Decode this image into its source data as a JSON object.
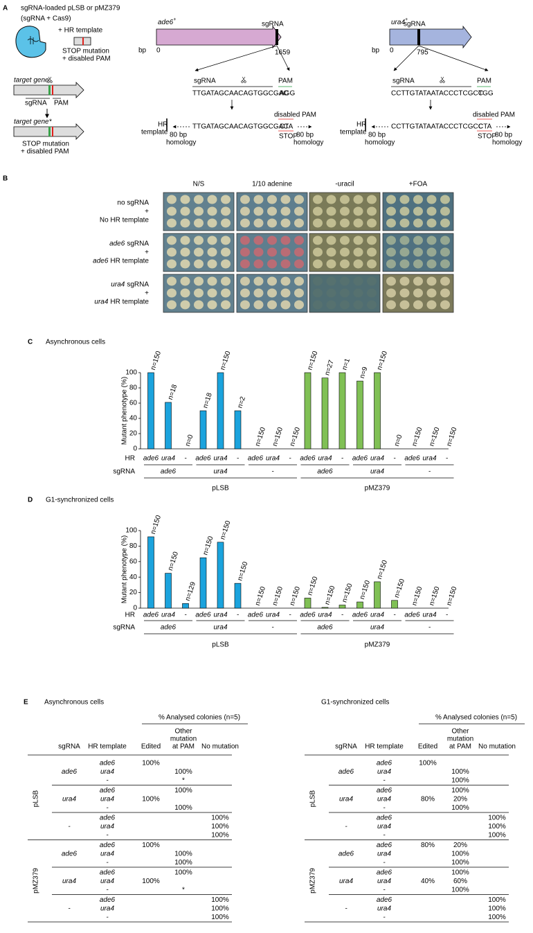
{
  "panel_a": {
    "label": "A",
    "vector": [
      "sgRNA-loaded pLSB or pMZ379",
      "(sgRNA + Cas9)"
    ],
    "hr_template": "+ HR template",
    "template_note": [
      "STOP mutation",
      "+ disabled PAM"
    ],
    "target_gene": "target gene",
    "sgrna": "sgRNA",
    "pam": "PAM",
    "target_gene_edited": "target gene*",
    "edited_note": [
      "STOP mutation",
      "+ disabled PAM"
    ],
    "genes": [
      {
        "name": "ade6",
        "sup": "+",
        "sgrna": "sgRNA",
        "bp": "bp",
        "start": 0,
        "end": 1659,
        "seq_label": "sgRNA",
        "pam_label": "PAM",
        "sequence": "TTGATAGCAACAGTGGCGAC",
        "pam": "AGG",
        "hr": "HR",
        "template": "template",
        "disabled": "disabled PAM",
        "new_pam": "CTA",
        "stop": "STOP",
        "homology_left": [
          "80 bp",
          "homology"
        ],
        "homology_right": [
          "80 bp",
          "homology"
        ]
      },
      {
        "name": "ura4",
        "sup": "+",
        "sgrna": "sgRNA",
        "bp": "bp",
        "start": 0,
        "end": 795,
        "seq_label": "sgRNA",
        "pam_label": "PAM",
        "sequence": "CCTTGTATAATACCCTCGCC",
        "pam": "TGG",
        "hr": "HR",
        "template": "template",
        "disabled": "disabled PAM",
        "new_pam": "CTA",
        "stop": "STOP",
        "homology_left": [
          "80 bp",
          "homology"
        ],
        "homology_right": [
          "80 bp",
          "homology"
        ]
      }
    ]
  },
  "panel_b": {
    "label": "B",
    "columns": [
      "N/S",
      "1/10 adenine",
      "-uracil",
      "+FOA"
    ],
    "rows": [
      {
        "top": "no sgRNA",
        "plus": "+",
        "bottom": "No HR template"
      },
      {
        "top_gene": "ade6",
        "top": "sgRNA",
        "plus": "+",
        "bottom_gene": "ade6",
        "bottom": "HR template"
      },
      {
        "top_gene": "ura4",
        "top": "sgRNA",
        "plus": "+",
        "bottom_gene": "ura4",
        "bottom": "HR template"
      }
    ]
  },
  "chart_data": [
    {
      "type": "bar",
      "panel": "C",
      "title": "Asynchronous cells",
      "ylabel": "Mutant phenotype (%)",
      "ylim": [
        0,
        100
      ],
      "yticks": [
        0,
        20,
        40,
        60,
        80,
        100
      ],
      "row_labels": [
        "HR",
        "sgRNA"
      ],
      "categories": [
        "ade6",
        "ura4",
        "-",
        "ade6",
        "ura4",
        "-",
        "ade6",
        "ura4",
        "-",
        "ade6",
        "ura4",
        "-",
        "ade6",
        "ura4",
        "-",
        "ade6",
        "ura4",
        "-"
      ],
      "sgrna": [
        "ade6",
        "ura4",
        "-",
        "ade6",
        "ura4",
        "-"
      ],
      "plasmids": [
        {
          "name": "pLSB",
          "color": "#1ba3dd"
        },
        {
          "name": "pMZ379",
          "color": "#80c055"
        }
      ],
      "values": [
        100,
        61,
        0,
        50,
        100,
        50,
        0,
        0,
        0,
        100,
        93,
        100,
        89,
        100,
        0,
        0,
        0,
        0
      ],
      "annotations": [
        "n=150",
        "n=18",
        "n=0",
        "n=18",
        "n=150",
        "n=2",
        "n=150",
        "n=150",
        "n=150",
        "n=150",
        "n=27",
        "n=1",
        "n=9",
        "n=150",
        "n=0",
        "n=150",
        "n=150",
        "n=150"
      ]
    },
    {
      "type": "bar",
      "panel": "D",
      "title": "G1-synchronized cells",
      "ylabel": "Mutant phenotype (%)",
      "ylim": [
        0,
        100
      ],
      "yticks": [
        0,
        20,
        40,
        60,
        80,
        100
      ],
      "row_labels": [
        "HR",
        "sgRNA"
      ],
      "categories": [
        "ade6",
        "ura4",
        "-",
        "ade6",
        "ura4",
        "-",
        "ade6",
        "ura4",
        "-",
        "ade6",
        "ura4",
        "-",
        "ade6",
        "ura4",
        "-",
        "ade6",
        "ura4",
        "-"
      ],
      "sgrna": [
        "ade6",
        "ura4",
        "-",
        "ade6",
        "ura4",
        "-"
      ],
      "plasmids": [
        {
          "name": "pLSB",
          "color": "#1ba3dd"
        },
        {
          "name": "pMZ379",
          "color": "#80c055"
        }
      ],
      "values": [
        92,
        45,
        6,
        65,
        85,
        32,
        0,
        0,
        0,
        13,
        1,
        4,
        8,
        34,
        10,
        0,
        0,
        0
      ],
      "annotations": [
        "n=150",
        "n=150",
        "n=129",
        "n=150",
        "n=150",
        "n=150",
        "n=150",
        "n=150",
        "n=150",
        "n=150",
        "n=150",
        "n=150",
        "n=150",
        "n=150",
        "n=150",
        "n=150",
        "n=150",
        "n=150"
      ]
    }
  ],
  "panel_e": {
    "label": "E",
    "tables": [
      {
        "title": "Asynchronous cells",
        "group_header": "% Analysed colonies (n=5)",
        "columns": {
          "sgrna": "sgRNA",
          "hr": "HR template",
          "edited": "Edited",
          "other": [
            "Other",
            "mutation",
            "at PAM"
          ],
          "none": "No mutation"
        },
        "plasmids": [
          {
            "name": "pLSB",
            "groups": [
              {
                "sgrna": "ade6",
                "rows": [
                  {
                    "hr": "ade6",
                    "edited": "100%"
                  },
                  {
                    "hr": "ura4",
                    "other": "100%"
                  },
                  {
                    "hr": "-",
                    "other": "*"
                  }
                ]
              },
              {
                "sgrna": "ura4",
                "rows": [
                  {
                    "hr": "ade6",
                    "other": "100%"
                  },
                  {
                    "hr": "ura4",
                    "edited": "100%"
                  },
                  {
                    "hr": "-",
                    "other": "100%"
                  }
                ]
              },
              {
                "sgrna": "-",
                "rows": [
                  {
                    "hr": "ade6",
                    "none": "100%"
                  },
                  {
                    "hr": "ura4",
                    "none": "100%"
                  },
                  {
                    "hr": "-",
                    "none": "100%"
                  }
                ]
              }
            ]
          },
          {
            "name": "pMZ379",
            "groups": [
              {
                "sgrna": "ade6",
                "rows": [
                  {
                    "hr": "ade6",
                    "edited": "100%"
                  },
                  {
                    "hr": "ura4",
                    "other": "100%"
                  },
                  {
                    "hr": "-",
                    "other": "100%"
                  }
                ]
              },
              {
                "sgrna": "ura4",
                "rows": [
                  {
                    "hr": "ade6",
                    "other": "100%"
                  },
                  {
                    "hr": "ura4",
                    "edited": "100%"
                  },
                  {
                    "hr": "-",
                    "other": "*"
                  }
                ]
              },
              {
                "sgrna": "-",
                "rows": [
                  {
                    "hr": "ade6",
                    "none": "100%"
                  },
                  {
                    "hr": "ura4",
                    "none": "100%"
                  },
                  {
                    "hr": "-",
                    "none": "100%"
                  }
                ]
              }
            ]
          }
        ]
      },
      {
        "title": "G1-synchronized cells",
        "group_header": "% Analysed colonies (n=5)",
        "columns": {
          "sgrna": "sgRNA",
          "hr": "HR template",
          "edited": "Edited",
          "other": [
            "Other",
            "mutation",
            "at PAM"
          ],
          "none": "No mutation"
        },
        "plasmids": [
          {
            "name": "pLSB",
            "groups": [
              {
                "sgrna": "ade6",
                "rows": [
                  {
                    "hr": "ade6",
                    "edited": "100%"
                  },
                  {
                    "hr": "ura4",
                    "other": "100%"
                  },
                  {
                    "hr": "-",
                    "other": "100%"
                  }
                ]
              },
              {
                "sgrna": "ura4",
                "rows": [
                  {
                    "hr": "ade6",
                    "other": "100%"
                  },
                  {
                    "hr": "ura4",
                    "edited": "80%",
                    "other": "20%"
                  },
                  {
                    "hr": "-",
                    "other": "100%"
                  }
                ]
              },
              {
                "sgrna": "-",
                "rows": [
                  {
                    "hr": "ade6",
                    "none": "100%"
                  },
                  {
                    "hr": "ura4",
                    "none": "100%"
                  },
                  {
                    "hr": "-",
                    "none": "100%"
                  }
                ]
              }
            ]
          },
          {
            "name": "pMZ379",
            "groups": [
              {
                "sgrna": "ade6",
                "rows": [
                  {
                    "hr": "ade6",
                    "edited": "80%",
                    "other": "20%"
                  },
                  {
                    "hr": "ura4",
                    "other": "100%"
                  },
                  {
                    "hr": "-",
                    "other": "100%"
                  }
                ]
              },
              {
                "sgrna": "ura4",
                "rows": [
                  {
                    "hr": "ade6",
                    "other": "100%"
                  },
                  {
                    "hr": "ura4",
                    "edited": "40%",
                    "other": "60%"
                  },
                  {
                    "hr": "-",
                    "other": "100%"
                  }
                ]
              },
              {
                "sgrna": "-",
                "rows": [
                  {
                    "hr": "ade6",
                    "none": "100%"
                  },
                  {
                    "hr": "ura4",
                    "none": "100%"
                  },
                  {
                    "hr": "-",
                    "none": "100%"
                  }
                ]
              }
            ]
          }
        ]
      }
    ]
  }
}
